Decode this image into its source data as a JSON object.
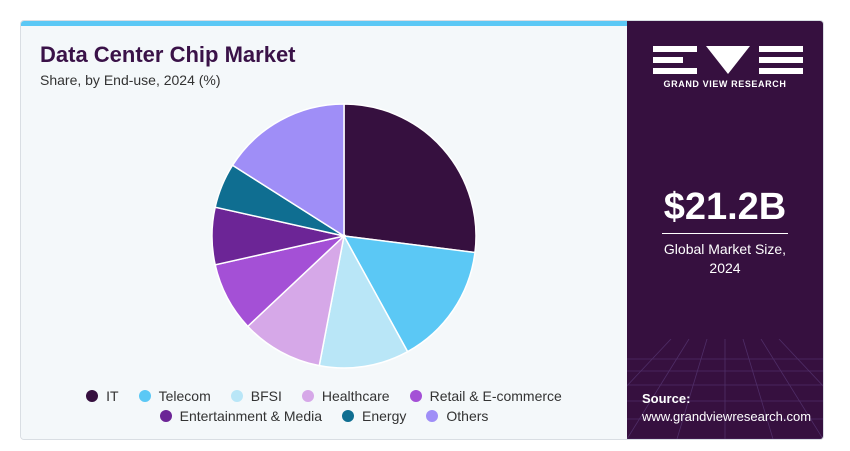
{
  "header": {
    "title": "Data Center Chip Market",
    "subtitle": "Share, by End-use, 2024 (%)"
  },
  "chart_data": {
    "type": "pie",
    "title": "Data Center Chip Market",
    "subtitle": "Share, by End-use, 2024 (%)",
    "categories": [
      "IT",
      "Telecom",
      "BFSI",
      "Healthcare",
      "Retail & E-commerce",
      "Entertainment & Media",
      "Energy",
      "Others"
    ],
    "values": [
      27,
      15,
      11,
      10,
      8.5,
      7,
      5.5,
      16
    ],
    "colors": [
      "#36103f",
      "#5bc8f5",
      "#b9e6f7",
      "#d6a8e8",
      "#a450d6",
      "#6c2596",
      "#0f6e91",
      "#9f8ef7"
    ],
    "legend": "bottom"
  },
  "legend_rows": [
    [
      0,
      1,
      2,
      3,
      4
    ],
    [
      5,
      6,
      7
    ]
  ],
  "sidebar": {
    "brand": "GRAND VIEW RESEARCH",
    "market_size": "$21.2B",
    "market_label_line1": "Global Market Size,",
    "market_label_line2": "2024",
    "source_label": "Source:",
    "source_url": "www.grandviewresearch.com"
  }
}
